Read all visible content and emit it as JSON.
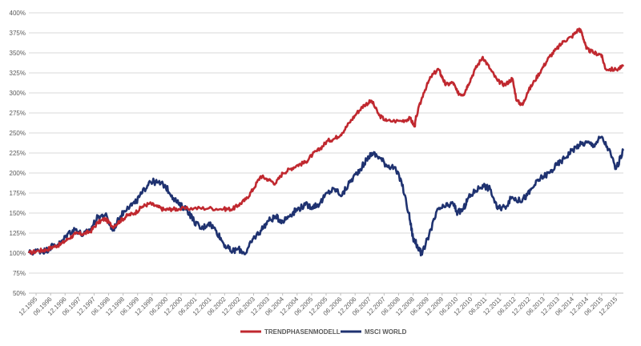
{
  "chart_data": {
    "type": "line",
    "title": "",
    "xlabel": "",
    "ylabel": "",
    "ylim": [
      50,
      400
    ],
    "yticks": [
      50,
      75,
      100,
      125,
      150,
      175,
      200,
      225,
      250,
      275,
      300,
      325,
      350,
      375,
      400
    ],
    "ytick_suffix": "%",
    "grid": "horizontal",
    "legend": "bottom-center",
    "xlim": [
      1995.92,
      2016.0
    ],
    "xtick_labels": [
      "12.1995",
      "06.1996",
      "12.1996",
      "06.1997",
      "12.1997",
      "06.1998",
      "12.1998",
      "06.1999",
      "12.1999",
      "06.2000",
      "12.2000",
      "06.2001",
      "12.2001",
      "06.2002",
      "12.2002",
      "06.2003",
      "12.2003",
      "06.2004",
      "12.2004",
      "06.2005",
      "12.2005",
      "06.2006",
      "12.2006",
      "06.2007",
      "12.2007",
      "06.2008",
      "12.2008",
      "06.2009",
      "12.2009",
      "06.2010",
      "12.2010",
      "06.2011",
      "12.2011",
      "06.2012",
      "12.2012",
      "06.2013",
      "12.2013",
      "06.2014",
      "12.2014",
      "06.2015",
      "12.2015"
    ],
    "series": [
      {
        "name": "TRENDPHASENMODELL",
        "color": "#c0282f",
        "points": [
          [
            1995.92,
            100
          ],
          [
            1996.25,
            103
          ],
          [
            1996.5,
            104
          ],
          [
            1996.75,
            108
          ],
          [
            1997.0,
            111
          ],
          [
            1997.25,
            118
          ],
          [
            1997.5,
            124
          ],
          [
            1997.75,
            124
          ],
          [
            1998.0,
            127
          ],
          [
            1998.25,
            138
          ],
          [
            1998.5,
            143
          ],
          [
            1998.75,
            133
          ],
          [
            1999.0,
            140
          ],
          [
            1999.25,
            147
          ],
          [
            1999.5,
            150
          ],
          [
            1999.75,
            158
          ],
          [
            2000.0,
            162
          ],
          [
            2000.25,
            158
          ],
          [
            2000.5,
            154
          ],
          [
            2000.75,
            155
          ],
          [
            2001.0,
            155
          ],
          [
            2001.5,
            156
          ],
          [
            2002.0,
            156
          ],
          [
            2002.5,
            155
          ],
          [
            2002.8,
            155
          ],
          [
            2003.0,
            160
          ],
          [
            2003.25,
            167
          ],
          [
            2003.5,
            180
          ],
          [
            2003.75,
            196
          ],
          [
            2004.0,
            192
          ],
          [
            2004.25,
            187
          ],
          [
            2004.5,
            200
          ],
          [
            2004.75,
            205
          ],
          [
            2005.0,
            210
          ],
          [
            2005.25,
            213
          ],
          [
            2005.5,
            223
          ],
          [
            2005.75,
            230
          ],
          [
            2006.0,
            240
          ],
          [
            2006.25,
            243
          ],
          [
            2006.5,
            250
          ],
          [
            2006.75,
            263
          ],
          [
            2007.0,
            275
          ],
          [
            2007.25,
            285
          ],
          [
            2007.5,
            290
          ],
          [
            2007.75,
            272
          ],
          [
            2008.0,
            265
          ],
          [
            2008.5,
            265
          ],
          [
            2008.8,
            268
          ],
          [
            2008.95,
            258
          ],
          [
            2009.0,
            270
          ],
          [
            2009.25,
            300
          ],
          [
            2009.5,
            320
          ],
          [
            2009.75,
            330
          ],
          [
            2009.9,
            318
          ],
          [
            2010.0,
            310
          ],
          [
            2010.25,
            313
          ],
          [
            2010.4,
            300
          ],
          [
            2010.6,
            298
          ],
          [
            2010.75,
            310
          ],
          [
            2011.0,
            330
          ],
          [
            2011.25,
            345
          ],
          [
            2011.5,
            330
          ],
          [
            2011.75,
            315
          ],
          [
            2012.0,
            310
          ],
          [
            2012.25,
            318
          ],
          [
            2012.4,
            290
          ],
          [
            2012.6,
            285
          ],
          [
            2012.75,
            300
          ],
          [
            2013.0,
            315
          ],
          [
            2013.25,
            330
          ],
          [
            2013.5,
            345
          ],
          [
            2013.75,
            355
          ],
          [
            2014.0,
            365
          ],
          [
            2014.25,
            370
          ],
          [
            2014.5,
            380
          ],
          [
            2014.6,
            375
          ],
          [
            2014.75,
            355
          ],
          [
            2015.0,
            350
          ],
          [
            2015.25,
            348
          ],
          [
            2015.4,
            330
          ],
          [
            2015.75,
            329
          ],
          [
            2016.0,
            333
          ]
        ]
      },
      {
        "name": "MSCI WORLD",
        "color": "#1f3270",
        "points": [
          [
            1995.92,
            100
          ],
          [
            1996.25,
            103
          ],
          [
            1996.5,
            103
          ],
          [
            1996.75,
            110
          ],
          [
            1997.0,
            112
          ],
          [
            1997.25,
            125
          ],
          [
            1997.5,
            130
          ],
          [
            1997.75,
            122
          ],
          [
            1998.0,
            130
          ],
          [
            1998.25,
            145
          ],
          [
            1998.5,
            148
          ],
          [
            1998.75,
            128
          ],
          [
            1999.0,
            145
          ],
          [
            1999.25,
            158
          ],
          [
            1999.5,
            162
          ],
          [
            1999.75,
            175
          ],
          [
            2000.0,
            190
          ],
          [
            2000.25,
            188
          ],
          [
            2000.5,
            185
          ],
          [
            2000.75,
            172
          ],
          [
            2001.0,
            160
          ],
          [
            2001.25,
            155
          ],
          [
            2001.5,
            140
          ],
          [
            2001.75,
            130
          ],
          [
            2002.0,
            138
          ],
          [
            2002.25,
            128
          ],
          [
            2002.5,
            112
          ],
          [
            2002.75,
            102
          ],
          [
            2003.0,
            105
          ],
          [
            2003.25,
            100
          ],
          [
            2003.5,
            118
          ],
          [
            2003.75,
            128
          ],
          [
            2004.0,
            140
          ],
          [
            2004.25,
            145
          ],
          [
            2004.5,
            140
          ],
          [
            2004.75,
            148
          ],
          [
            2005.0,
            155
          ],
          [
            2005.25,
            160
          ],
          [
            2005.5,
            158
          ],
          [
            2005.75,
            162
          ],
          [
            2006.0,
            175
          ],
          [
            2006.25,
            180
          ],
          [
            2006.5,
            172
          ],
          [
            2006.75,
            188
          ],
          [
            2007.0,
            200
          ],
          [
            2007.25,
            212
          ],
          [
            2007.5,
            225
          ],
          [
            2007.75,
            220
          ],
          [
            2008.0,
            210
          ],
          [
            2008.25,
            207
          ],
          [
            2008.5,
            190
          ],
          [
            2008.75,
            150
          ],
          [
            2008.9,
            118
          ],
          [
            2009.0,
            112
          ],
          [
            2009.2,
            98
          ],
          [
            2009.5,
            130
          ],
          [
            2009.75,
            155
          ],
          [
            2010.0,
            158
          ],
          [
            2010.25,
            162
          ],
          [
            2010.4,
            150
          ],
          [
            2010.6,
            155
          ],
          [
            2010.75,
            168
          ],
          [
            2011.0,
            178
          ],
          [
            2011.25,
            185
          ],
          [
            2011.5,
            180
          ],
          [
            2011.75,
            155
          ],
          [
            2012.0,
            158
          ],
          [
            2012.25,
            170
          ],
          [
            2012.5,
            165
          ],
          [
            2012.75,
            172
          ],
          [
            2013.0,
            185
          ],
          [
            2013.25,
            195
          ],
          [
            2013.5,
            200
          ],
          [
            2013.75,
            210
          ],
          [
            2014.0,
            218
          ],
          [
            2014.25,
            228
          ],
          [
            2014.5,
            235
          ],
          [
            2014.75,
            238
          ],
          [
            2015.0,
            235
          ],
          [
            2015.25,
            245
          ],
          [
            2015.5,
            230
          ],
          [
            2015.75,
            205
          ],
          [
            2016.0,
            228
          ]
        ]
      }
    ]
  }
}
